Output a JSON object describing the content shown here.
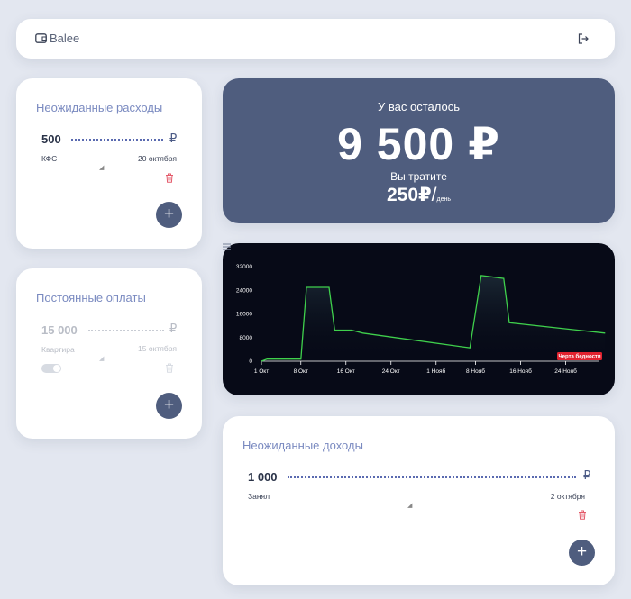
{
  "header": {
    "app_name": "Balee",
    "icons": {
      "logo": "wallet-icon",
      "logout": "logout-icon"
    }
  },
  "unexpected_expenses": {
    "title": "Неожиданные расходы",
    "entry": {
      "amount": "500",
      "currency": "₽",
      "description": "КФС",
      "date": "20 октября"
    },
    "add_label": "+"
  },
  "fixed_payments": {
    "title": "Постоянные оплаты",
    "entry": {
      "amount": "15 000",
      "currency": "₽",
      "description": "Квартира",
      "date": "15 октября",
      "enabled": false
    },
    "add_label": "+"
  },
  "balance": {
    "label": "У вас осталось",
    "amount": "9 500 ₽",
    "spend_label": "Вы тратите",
    "daily_amount": "250",
    "daily_currency": "₽",
    "daily_slash": "/",
    "daily_unit": "день"
  },
  "chart_data": {
    "type": "area",
    "title": "",
    "xlabel": "",
    "ylabel": "",
    "y_ticks": [
      "32000",
      "24000",
      "16000",
      "8000",
      "0"
    ],
    "x_ticks": [
      "1 Окт",
      "8 Окт",
      "16 Окт",
      "24 Окт",
      "1 Нояб",
      "8 Нояб",
      "16 Нояб",
      "24 Нояб"
    ],
    "ylim": [
      0,
      32000
    ],
    "series": [
      {
        "points": [
          [
            "1 Окт",
            0
          ],
          [
            "2 Окт",
            700
          ],
          [
            "8 Окт",
            700
          ],
          [
            "9 Окт",
            25000
          ],
          [
            "13 Окт",
            25000
          ],
          [
            "14 Окт",
            10500
          ],
          [
            "17 Окт",
            10500
          ],
          [
            "19 Окт",
            9500
          ],
          [
            "7 Нояб",
            4500
          ],
          [
            "9 Нояб",
            29000
          ],
          [
            "13 Нояб",
            28000
          ],
          [
            "14 Нояб",
            13000
          ],
          [
            "1 Дек",
            9500
          ]
        ]
      }
    ],
    "annotation": "Черта бедности",
    "colors": {
      "line": "#3fd04c",
      "background": "#070a17",
      "annotation": "#e2222f"
    }
  },
  "unexpected_income": {
    "title": "Неожиданные доходы",
    "entry": {
      "amount": "1 000",
      "currency": "₽",
      "description": "Занял",
      "date": "2 октября"
    },
    "add_label": "+"
  },
  "colors": {
    "accent": "#4f5d7e",
    "title": "#7a8ac0",
    "trash": "#e45a6a",
    "page_bg": "#e3e7f0"
  }
}
